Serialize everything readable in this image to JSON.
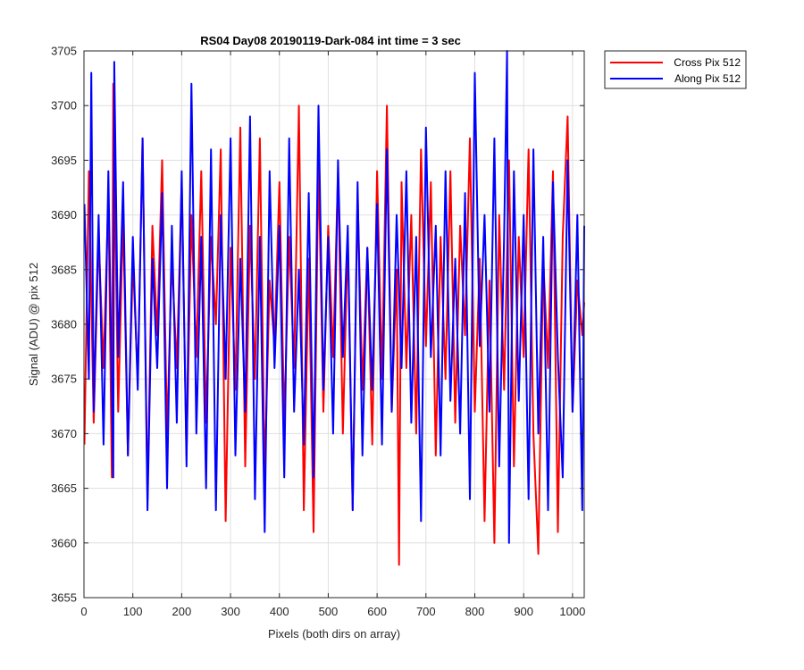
{
  "chart_data": {
    "type": "line",
    "title": "RS04 Day08 20190119-Dark-084 int time = 3 sec",
    "xlabel": "Pixels (both dirs on array)",
    "ylabel": "Signal (ADU) @ pix 512",
    "xlim": [
      0,
      1024
    ],
    "ylim": [
      3655,
      3705
    ],
    "xticks": [
      0,
      100,
      200,
      300,
      400,
      500,
      600,
      700,
      800,
      900,
      1000
    ],
    "yticks": [
      3655,
      3660,
      3665,
      3670,
      3675,
      3680,
      3685,
      3690,
      3695,
      3700,
      3705
    ],
    "grid": true,
    "legend_position": "outside-top-right",
    "series": [
      {
        "name": "Cross Pix 512",
        "color": "#ff0000",
        "x": [
          1,
          10,
          20,
          30,
          40,
          50,
          57,
          60,
          70,
          80,
          90,
          100,
          110,
          120,
          130,
          140,
          150,
          160,
          170,
          180,
          190,
          200,
          210,
          220,
          230,
          240,
          250,
          260,
          270,
          280,
          290,
          300,
          310,
          320,
          330,
          340,
          350,
          360,
          370,
          380,
          390,
          400,
          410,
          420,
          430,
          440,
          450,
          460,
          470,
          480,
          490,
          500,
          510,
          520,
          530,
          540,
          550,
          560,
          570,
          580,
          590,
          600,
          610,
          620,
          630,
          640,
          645,
          650,
          660,
          670,
          680,
          690,
          700,
          710,
          720,
          730,
          740,
          750,
          760,
          770,
          780,
          790,
          800,
          810,
          820,
          830,
          840,
          850,
          860,
          870,
          880,
          890,
          900,
          910,
          920,
          930,
          940,
          950,
          960,
          970,
          980,
          990,
          1000,
          1010,
          1020,
          1024
        ],
        "y": [
          3669,
          3694,
          3671,
          3688,
          3676,
          3692,
          3666,
          3702,
          3672,
          3690,
          3668,
          3686,
          3675,
          3697,
          3664,
          3689,
          3679,
          3695,
          3670,
          3686,
          3676,
          3693,
          3668,
          3690,
          3677,
          3694,
          3671,
          3688,
          3680,
          3696,
          3662,
          3687,
          3674,
          3698,
          3667,
          3689,
          3675,
          3697,
          3666,
          3684,
          3678,
          3693,
          3671,
          3688,
          3676,
          3700,
          3663,
          3686,
          3661,
          3695,
          3672,
          3689,
          3677,
          3694,
          3670,
          3688,
          3663,
          3692,
          3674,
          3687,
          3669,
          3694,
          3675,
          3700,
          3672,
          3685,
          3658,
          3693,
          3676,
          3690,
          3670,
          3696,
          3678,
          3693,
          3668,
          3688,
          3675,
          3694,
          3671,
          3689,
          3679,
          3697,
          3672,
          3686,
          3662,
          3684,
          3660,
          3690,
          3674,
          3695,
          3667,
          3688,
          3677,
          3696,
          3670,
          3659,
          3686,
          3676,
          3694,
          3661,
          3688,
          3699,
          3672,
          3684,
          3679,
          3682
        ]
      },
      {
        "name": "Along Pix 512",
        "color": "#0000ff",
        "x": [
          1,
          10,
          15,
          20,
          30,
          40,
          50,
          60,
          62,
          70,
          80,
          90,
          100,
          110,
          120,
          130,
          140,
          150,
          160,
          170,
          180,
          190,
          200,
          210,
          220,
          230,
          240,
          250,
          260,
          270,
          280,
          290,
          300,
          310,
          320,
          330,
          340,
          350,
          360,
          370,
          380,
          390,
          400,
          410,
          420,
          430,
          440,
          450,
          460,
          470,
          480,
          490,
          500,
          510,
          520,
          530,
          540,
          550,
          560,
          570,
          580,
          590,
          600,
          610,
          620,
          630,
          640,
          650,
          660,
          670,
          680,
          690,
          700,
          710,
          720,
          730,
          740,
          750,
          760,
          770,
          780,
          790,
          800,
          810,
          820,
          830,
          840,
          850,
          860,
          866,
          870,
          880,
          890,
          900,
          910,
          920,
          930,
          940,
          950,
          960,
          970,
          980,
          990,
          1000,
          1010,
          1020,
          1024
        ],
        "y": [
          3691,
          3675,
          3703,
          3672,
          3690,
          3669,
          3694,
          3666,
          3704,
          3677,
          3693,
          3668,
          3688,
          3674,
          3697,
          3663,
          3686,
          3676,
          3692,
          3665,
          3689,
          3671,
          3694,
          3667,
          3702,
          3670,
          3688,
          3665,
          3696,
          3663,
          3690,
          3675,
          3697,
          3668,
          3686,
          3672,
          3699,
          3664,
          3688,
          3661,
          3694,
          3676,
          3689,
          3666,
          3697,
          3672,
          3685,
          3669,
          3692,
          3666,
          3700,
          3674,
          3688,
          3670,
          3695,
          3677,
          3689,
          3663,
          3693,
          3668,
          3687,
          3674,
          3691,
          3669,
          3696,
          3672,
          3690,
          3676,
          3694,
          3671,
          3688,
          3662,
          3698,
          3677,
          3689,
          3668,
          3694,
          3673,
          3686,
          3670,
          3692,
          3664,
          3703,
          3678,
          3690,
          3672,
          3697,
          3667,
          3688,
          3705,
          3660,
          3694,
          3673,
          3690,
          3664,
          3696,
          3670,
          3688,
          3663,
          3693,
          3677,
          3666,
          3695,
          3672,
          3690,
          3663,
          3689
        ]
      }
    ]
  }
}
